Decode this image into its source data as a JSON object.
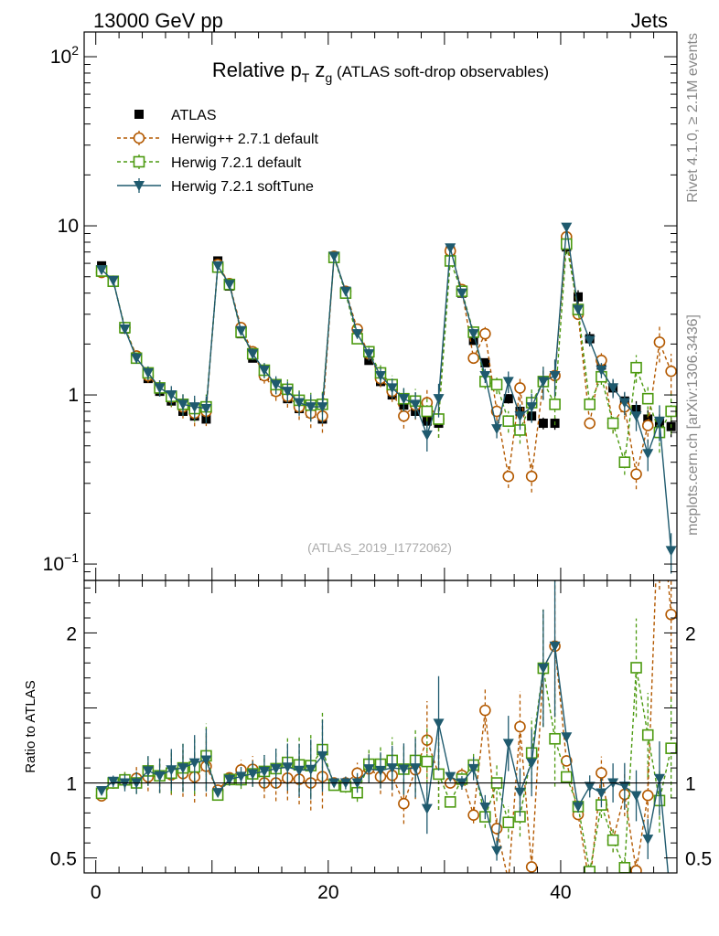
{
  "header": {
    "left": "13000 GeV pp",
    "right": "Jets"
  },
  "side_text": {
    "top": "Rivet 4.1.0, ≥ 2.1M events",
    "bottom": "mcplots.cern.ch [arXiv:1306.3436]"
  },
  "reference": "(ATLAS_2019_I1772062)",
  "title": {
    "main": "Relative p",
    "sub_t": "T",
    "z": " z",
    "sub_g": "g",
    "rest": " (ATLAS soft-drop observables)"
  },
  "ratio_ylabel": "Ratio to ATLAS",
  "colors": {
    "atlas": "#000000",
    "herwigpp": "#b35900",
    "herwig721": "#4c9a10",
    "softtune": "#1f5a6e"
  },
  "chart_data": {
    "type": "scatter",
    "title": "Relative pT zg (ATLAS soft-drop observables)",
    "xlabel": "",
    "ylabel": "",
    "xlim": [
      -1,
      50
    ],
    "ylim_main": [
      0.08,
      140
    ],
    "ylim_ratio": [
      0.4,
      2.35
    ],
    "main_yticks": [
      {
        "value": 100,
        "base": "10",
        "exp": "2"
      },
      {
        "value": 10,
        "base": "10",
        "exp": ""
      },
      {
        "value": 1,
        "base": "1",
        "exp": ""
      },
      {
        "value": 0.1,
        "base": "10",
        "exp": "−1"
      }
    ],
    "ratio_yticks": [
      {
        "value": 2,
        "label": "2"
      },
      {
        "value": 1,
        "label": "1"
      },
      {
        "value": 0.5,
        "label": "0.5"
      }
    ],
    "xticks": [
      {
        "value": 0,
        "label": "0"
      },
      {
        "value": 20,
        "label": "20"
      },
      {
        "value": 40,
        "label": "40"
      }
    ],
    "x": [
      0.5,
      1.5,
      2.5,
      3.5,
      4.5,
      5.5,
      6.5,
      7.5,
      8.5,
      9.5,
      10.5,
      11.5,
      12.5,
      13.5,
      14.5,
      15.5,
      16.5,
      17.5,
      18.5,
      19.5,
      20.5,
      21.5,
      22.5,
      23.5,
      24.5,
      25.5,
      26.5,
      27.5,
      28.5,
      29.5,
      30.5,
      31.5,
      32.5,
      33.5,
      34.5,
      35.5,
      36.5,
      37.5,
      38.5,
      39.5,
      40.5,
      41.5,
      42.5,
      43.5,
      44.5,
      45.5,
      46.5,
      47.5,
      48.5,
      49.5
    ],
    "series": [
      {
        "name": "ATLAS",
        "style": "data",
        "values": [
          5.8,
          4.7,
          2.45,
          1.65,
          1.25,
          1.05,
          0.92,
          0.8,
          0.75,
          0.72,
          6.2,
          4.4,
          2.3,
          1.65,
          1.3,
          1.05,
          0.95,
          0.83,
          0.78,
          0.72,
          6.6,
          4.1,
          2.3,
          1.6,
          1.2,
          1.0,
          0.87,
          0.8,
          0.7,
          0.68,
          7.1,
          4.0,
          2.1,
          1.55,
          1.15,
          0.95,
          0.8,
          0.75,
          0.68,
          0.68,
          7.5,
          3.8,
          2.15,
          1.5,
          1.1,
          0.92,
          0.82,
          0.72,
          0.68,
          0.65
        ]
      },
      {
        "name": "Herwig++ 2.7.1 default",
        "style": "circle",
        "values": [
          5.3,
          4.7,
          2.5,
          1.7,
          1.3,
          1.1,
          0.97,
          0.85,
          0.78,
          0.8,
          5.9,
          4.55,
          2.5,
          1.8,
          1.3,
          1.05,
          0.98,
          0.85,
          0.78,
          0.75,
          6.6,
          4.1,
          2.45,
          1.75,
          1.25,
          1.05,
          0.75,
          0.87,
          0.9,
          0.72,
          7.1,
          4.2,
          1.65,
          2.3,
          0.8,
          0.33,
          1.1,
          0.33,
          1.2,
          1.3,
          8.6,
          3.0,
          0.68,
          1.6,
          0.68,
          0.85,
          0.34,
          0.66,
          2.05,
          1.38
        ]
      },
      {
        "name": "Herwig 7.2.1 default",
        "style": "square",
        "values": [
          5.4,
          4.7,
          2.5,
          1.65,
          1.35,
          1.1,
          0.98,
          0.88,
          0.83,
          0.85,
          5.7,
          4.5,
          2.35,
          1.75,
          1.4,
          1.15,
          1.08,
          0.93,
          0.87,
          0.88,
          6.5,
          4.0,
          2.15,
          1.8,
          1.35,
          1.15,
          0.95,
          0.92,
          0.8,
          0.72,
          6.2,
          4.1,
          2.35,
          1.2,
          1.15,
          0.7,
          0.62,
          0.9,
          1.2,
          0.88,
          7.8,
          3.2,
          0.88,
          1.28,
          0.68,
          0.4,
          1.45,
          0.95,
          0.6,
          0.8
        ]
      },
      {
        "name": "Herwig 7.2.1 softTune",
        "style": "triangle",
        "values": [
          5.5,
          4.75,
          2.45,
          1.65,
          1.35,
          1.1,
          1.0,
          0.88,
          0.85,
          0.83,
          5.8,
          4.5,
          2.4,
          1.75,
          1.4,
          1.15,
          1.05,
          0.9,
          0.85,
          0.85,
          6.6,
          4.1,
          2.3,
          1.75,
          1.3,
          1.1,
          0.95,
          0.88,
          0.58,
          0.95,
          7.4,
          4.0,
          2.3,
          1.3,
          0.63,
          1.2,
          0.75,
          0.85,
          1.2,
          1.3,
          9.8,
          3.2,
          2.1,
          1.4,
          1.1,
          0.9,
          0.75,
          0.45,
          0.7,
          0.12
        ]
      }
    ],
    "legend": [
      {
        "label": "ATLAS",
        "style": "data"
      },
      {
        "label": "Herwig++ 2.7.1 default",
        "style": "circle"
      },
      {
        "label": "Herwig 7.2.1 default",
        "style": "square"
      },
      {
        "label": "Herwig 7.2.1 softTune",
        "style": "triangle"
      }
    ]
  }
}
